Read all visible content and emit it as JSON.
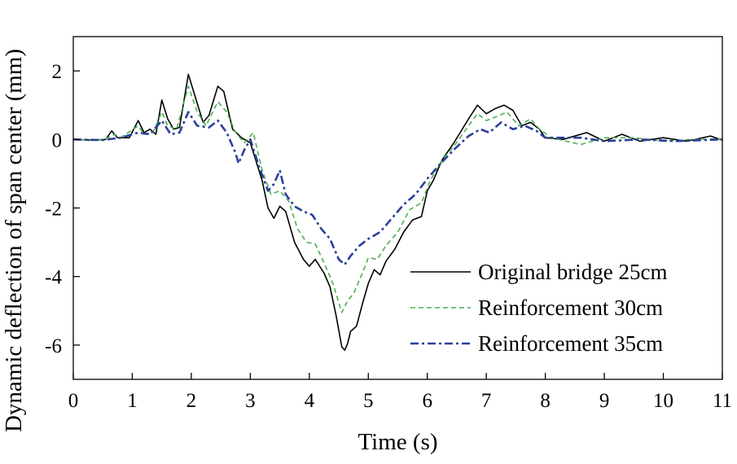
{
  "chart_data": {
    "type": "line",
    "title": "",
    "xlabel": "Time (s)",
    "ylabel": "Dynamic deflection of span center (mm)",
    "xlim": [
      0,
      11
    ],
    "ylim": [
      -7,
      3
    ],
    "xticks": [
      0,
      1,
      2,
      3,
      4,
      5,
      6,
      7,
      8,
      9,
      10,
      11
    ],
    "yticks": [
      -6,
      -4,
      -2,
      0,
      2
    ],
    "xtick_labels": [
      "0",
      "1",
      "2",
      "3",
      "4",
      "5",
      "6",
      "7",
      "8",
      "9",
      "10",
      "11"
    ],
    "ytick_labels": [
      "-6",
      "-4",
      "-2",
      "0",
      "2"
    ],
    "grid": false,
    "legend_position": "bottom-right",
    "series": [
      {
        "name": "Original bridge 25cm",
        "color": "#000000",
        "style": "solid",
        "points": [
          [
            0,
            0
          ],
          [
            0.3,
            -0.02
          ],
          [
            0.55,
            0.0
          ],
          [
            0.65,
            0.25
          ],
          [
            0.75,
            0.05
          ],
          [
            0.95,
            0.05
          ],
          [
            1.1,
            0.55
          ],
          [
            1.2,
            0.2
          ],
          [
            1.3,
            0.3
          ],
          [
            1.4,
            0.15
          ],
          [
            1.5,
            1.15
          ],
          [
            1.6,
            0.6
          ],
          [
            1.7,
            0.3
          ],
          [
            1.8,
            0.35
          ],
          [
            1.95,
            1.9
          ],
          [
            2.1,
            1.05
          ],
          [
            2.2,
            0.5
          ],
          [
            2.3,
            0.7
          ],
          [
            2.45,
            1.55
          ],
          [
            2.55,
            1.4
          ],
          [
            2.7,
            0.3
          ],
          [
            2.85,
            0.05
          ],
          [
            3.0,
            -0.1
          ],
          [
            3.2,
            -1.2
          ],
          [
            3.3,
            -2.0
          ],
          [
            3.4,
            -2.3
          ],
          [
            3.5,
            -1.95
          ],
          [
            3.6,
            -2.1
          ],
          [
            3.75,
            -3.0
          ],
          [
            3.9,
            -3.5
          ],
          [
            4.0,
            -3.7
          ],
          [
            4.1,
            -3.5
          ],
          [
            4.25,
            -3.9
          ],
          [
            4.35,
            -4.3
          ],
          [
            4.45,
            -5.1
          ],
          [
            4.55,
            -6.05
          ],
          [
            4.6,
            -6.15
          ],
          [
            4.65,
            -5.95
          ],
          [
            4.7,
            -5.6
          ],
          [
            4.8,
            -5.45
          ],
          [
            4.9,
            -4.8
          ],
          [
            5.0,
            -4.2
          ],
          [
            5.1,
            -3.8
          ],
          [
            5.2,
            -3.95
          ],
          [
            5.3,
            -3.55
          ],
          [
            5.45,
            -3.2
          ],
          [
            5.6,
            -2.7
          ],
          [
            5.75,
            -2.35
          ],
          [
            5.9,
            -2.25
          ],
          [
            6.0,
            -1.5
          ],
          [
            6.1,
            -1.2
          ],
          [
            6.25,
            -0.6
          ],
          [
            6.45,
            -0.1
          ],
          [
            6.7,
            0.6
          ],
          [
            6.85,
            1.0
          ],
          [
            7.0,
            0.75
          ],
          [
            7.15,
            0.9
          ],
          [
            7.3,
            1.0
          ],
          [
            7.45,
            0.85
          ],
          [
            7.6,
            0.4
          ],
          [
            7.75,
            0.5
          ],
          [
            7.9,
            0.3
          ],
          [
            8.0,
            0.05
          ],
          [
            8.3,
            0.0
          ],
          [
            8.7,
            0.2
          ],
          [
            9.0,
            -0.05
          ],
          [
            9.3,
            0.15
          ],
          [
            9.6,
            -0.05
          ],
          [
            10.0,
            0.05
          ],
          [
            10.4,
            -0.05
          ],
          [
            10.8,
            0.1
          ],
          [
            11.0,
            -0.02
          ]
        ]
      },
      {
        "name": "Reinforcement 30cm",
        "color": "#4caf50",
        "style": "dashed",
        "points": [
          [
            0,
            0
          ],
          [
            0.5,
            -0.02
          ],
          [
            0.7,
            0.15
          ],
          [
            0.8,
            0.05
          ],
          [
            1.1,
            0.4
          ],
          [
            1.2,
            0.15
          ],
          [
            1.35,
            0.2
          ],
          [
            1.5,
            0.8
          ],
          [
            1.6,
            0.4
          ],
          [
            1.75,
            0.3
          ],
          [
            1.95,
            1.55
          ],
          [
            2.1,
            0.8
          ],
          [
            2.25,
            0.4
          ],
          [
            2.45,
            1.1
          ],
          [
            2.6,
            0.8
          ],
          [
            2.75,
            0.2
          ],
          [
            2.9,
            -0.1
          ],
          [
            3.05,
            0.2
          ],
          [
            3.2,
            -0.9
          ],
          [
            3.35,
            -1.6
          ],
          [
            3.5,
            -1.5
          ],
          [
            3.65,
            -1.8
          ],
          [
            3.8,
            -2.6
          ],
          [
            3.95,
            -3.0
          ],
          [
            4.1,
            -3.05
          ],
          [
            4.25,
            -3.6
          ],
          [
            4.4,
            -4.2
          ],
          [
            4.55,
            -5.05
          ],
          [
            4.65,
            -4.7
          ],
          [
            4.75,
            -4.5
          ],
          [
            4.9,
            -3.9
          ],
          [
            5.0,
            -3.45
          ],
          [
            5.15,
            -3.5
          ],
          [
            5.3,
            -3.1
          ],
          [
            5.5,
            -2.7
          ],
          [
            5.7,
            -2.05
          ],
          [
            5.9,
            -1.85
          ],
          [
            6.05,
            -1.2
          ],
          [
            6.25,
            -0.6
          ],
          [
            6.45,
            -0.2
          ],
          [
            6.7,
            0.4
          ],
          [
            6.85,
            0.75
          ],
          [
            7.0,
            0.55
          ],
          [
            7.15,
            0.65
          ],
          [
            7.35,
            0.8
          ],
          [
            7.55,
            0.4
          ],
          [
            7.75,
            0.6
          ],
          [
            7.9,
            0.3
          ],
          [
            8.1,
            0.05
          ],
          [
            8.6,
            -0.15
          ],
          [
            9.0,
            0.05
          ],
          [
            9.5,
            0.05
          ],
          [
            10.0,
            -0.05
          ],
          [
            10.5,
            0.0
          ],
          [
            11.0,
            0.02
          ]
        ]
      },
      {
        "name": "Reinforcement 35cm",
        "color": "#2b3f9c",
        "style": "dashdot",
        "points": [
          [
            0,
            0
          ],
          [
            0.5,
            -0.02
          ],
          [
            0.8,
            0.05
          ],
          [
            1.1,
            0.2
          ],
          [
            1.3,
            0.15
          ],
          [
            1.5,
            0.55
          ],
          [
            1.65,
            0.15
          ],
          [
            1.8,
            0.2
          ],
          [
            1.95,
            0.8
          ],
          [
            2.1,
            0.4
          ],
          [
            2.3,
            0.35
          ],
          [
            2.45,
            0.55
          ],
          [
            2.6,
            0.2
          ],
          [
            2.75,
            -0.4
          ],
          [
            2.8,
            -0.7
          ],
          [
            2.9,
            -0.3
          ],
          [
            3.0,
            0.0
          ],
          [
            3.15,
            -0.8
          ],
          [
            3.3,
            -1.5
          ],
          [
            3.4,
            -1.3
          ],
          [
            3.5,
            -0.9
          ],
          [
            3.6,
            -1.6
          ],
          [
            3.75,
            -1.95
          ],
          [
            3.9,
            -2.1
          ],
          [
            4.05,
            -2.2
          ],
          [
            4.2,
            -2.6
          ],
          [
            4.35,
            -2.9
          ],
          [
            4.5,
            -3.5
          ],
          [
            4.6,
            -3.65
          ],
          [
            4.7,
            -3.4
          ],
          [
            4.85,
            -3.1
          ],
          [
            5.0,
            -2.9
          ],
          [
            5.2,
            -2.7
          ],
          [
            5.4,
            -2.3
          ],
          [
            5.6,
            -1.9
          ],
          [
            5.8,
            -1.6
          ],
          [
            6.0,
            -1.15
          ],
          [
            6.2,
            -0.75
          ],
          [
            6.45,
            -0.3
          ],
          [
            6.7,
            0.1
          ],
          [
            6.9,
            0.3
          ],
          [
            7.05,
            0.2
          ],
          [
            7.25,
            0.5
          ],
          [
            7.45,
            0.3
          ],
          [
            7.65,
            0.4
          ],
          [
            7.85,
            0.25
          ],
          [
            8.0,
            0.05
          ],
          [
            8.6,
            0.05
          ],
          [
            9.0,
            -0.05
          ],
          [
            9.6,
            0.0
          ],
          [
            10.2,
            -0.05
          ],
          [
            11.0,
            0.0
          ]
        ]
      }
    ]
  }
}
